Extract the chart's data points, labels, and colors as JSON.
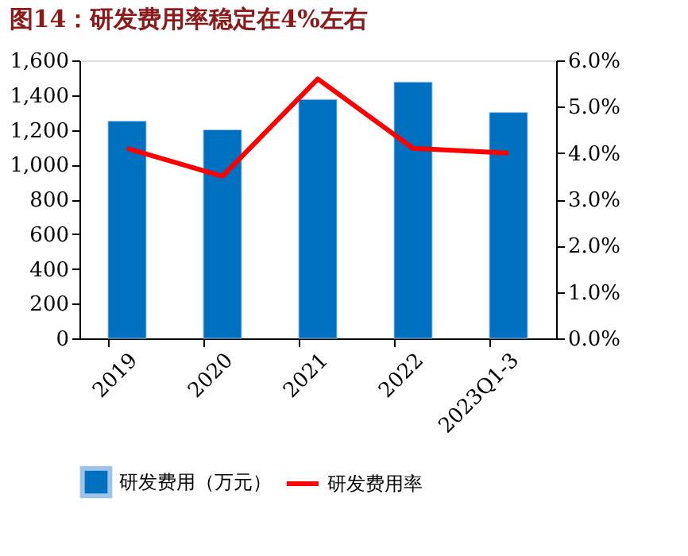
{
  "chart_data": {
    "type": "bar",
    "title": "图14：研发费用率稳定在4%左右",
    "categories": [
      "2019",
      "2020",
      "2021",
      "2022",
      "2023Q1-3"
    ],
    "series": [
      {
        "name": "研发费用（万元）",
        "color": "#0070c0",
        "values": [
          1250,
          1200,
          1375,
          1475,
          1300
        ]
      },
      {
        "name": "研发费用率",
        "type": "line",
        "axis": "y2",
        "color": "#ff0000",
        "values": [
          4.1,
          3.5,
          5.6,
          4.1,
          4.0
        ]
      }
    ],
    "ylim": [
      0,
      1600
    ],
    "yticks": [
      {
        "value": 0,
        "label": "0"
      },
      {
        "value": 200,
        "label": "200"
      },
      {
        "value": 400,
        "label": "400"
      },
      {
        "value": 600,
        "label": "600"
      },
      {
        "value": 800,
        "label": "800"
      },
      {
        "value": 1000,
        "label": "1,000"
      },
      {
        "value": 1200,
        "label": "1,200"
      },
      {
        "value": 1400,
        "label": "1,400"
      },
      {
        "value": 1600,
        "label": "1,600"
      }
    ],
    "y2lim": [
      0,
      6
    ],
    "y2ticks": [
      {
        "value": 0,
        "label": "0.0%"
      },
      {
        "value": 1,
        "label": "1.0%"
      },
      {
        "value": 2,
        "label": "2.0%"
      },
      {
        "value": 3,
        "label": "3.0%"
      },
      {
        "value": 4,
        "label": "4.0%"
      },
      {
        "value": 5,
        "label": "5.0%"
      },
      {
        "value": 6,
        "label": "6.0%"
      }
    ],
    "grid": false,
    "legend": "bottom",
    "marker": "none",
    "line_style": "solid"
  }
}
